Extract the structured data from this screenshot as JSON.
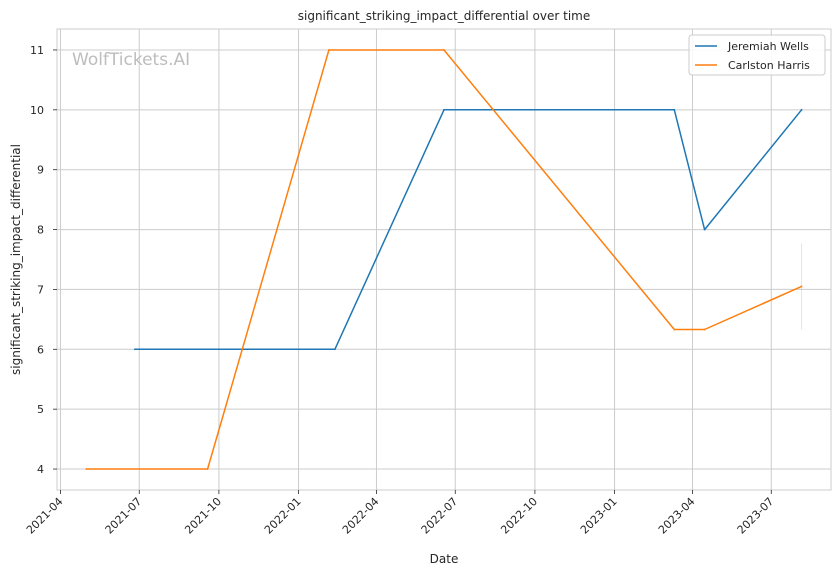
{
  "chart_data": {
    "type": "line",
    "title": "significant_striking_impact_differential over time",
    "xlabel": "Date",
    "ylabel": "significant_striking_impact_differential",
    "watermark": "WolfTickets.AI",
    "x_ticks": [
      "2021-04",
      "2021-07",
      "2021-10",
      "2022-01",
      "2022-04",
      "2022-07",
      "2022-10",
      "2023-01",
      "2023-04",
      "2023-07"
    ],
    "y_ticks": [
      "4",
      "5",
      "6",
      "7",
      "8",
      "9",
      "10",
      "11"
    ],
    "xlim": [
      "2021-03-28",
      "2023-09-08"
    ],
    "ylim": [
      3.65,
      11.35
    ],
    "grid": true,
    "legend_position": "top-right",
    "series": [
      {
        "name": "Jeremiah Wells",
        "color": "#1f77b4",
        "points": [
          {
            "x": "2021-06-26",
            "y": 6
          },
          {
            "x": "2022-02-12",
            "y": 6
          },
          {
            "x": "2022-06-18",
            "y": 10
          },
          {
            "x": "2023-03-11",
            "y": 10
          },
          {
            "x": "2023-04-15",
            "y": 8
          },
          {
            "x": "2023-08-05",
            "y": 10
          }
        ]
      },
      {
        "name": "Carlston Harris",
        "color": "#ff7f0e",
        "points": [
          {
            "x": "2021-05-01",
            "y": 4
          },
          {
            "x": "2021-09-18",
            "y": 4
          },
          {
            "x": "2022-02-05",
            "y": 11
          },
          {
            "x": "2022-06-18",
            "y": 11
          },
          {
            "x": "2023-03-11",
            "y": 6.33
          },
          {
            "x": "2023-04-15",
            "y": 6.33
          },
          {
            "x": "2023-08-05",
            "y": 7.05
          }
        ],
        "error_band": {
          "x": "2023-08-05",
          "low": 6.33,
          "high": 7.77
        }
      }
    ]
  }
}
